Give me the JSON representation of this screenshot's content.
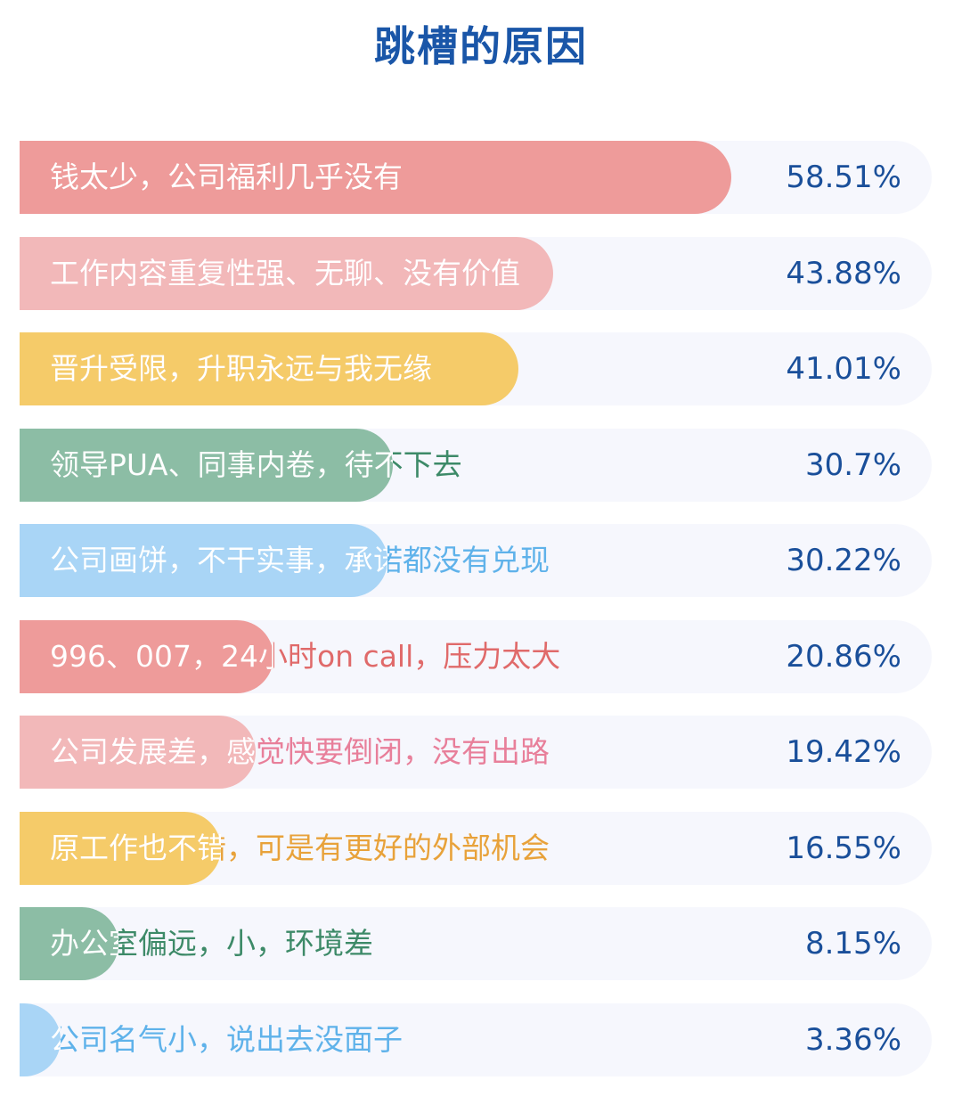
{
  "title": "跳槽的原因",
  "chart_data": {
    "type": "bar",
    "orientation": "horizontal",
    "title": "跳槽的原因",
    "unit": "%",
    "xlim": [
      0,
      75
    ],
    "categories": [
      "钱太少，公司福利几乎没有",
      "工作内容重复性强、无聊、没有价值",
      "晋升受限，升职永远与我无缘",
      "领导PUA、同事内卷，待不下去",
      "公司画饼，不干实事，承诺都没有兑现",
      "996、007，24小时on call，压力太大",
      "公司发展差，感觉快要倒闭，没有出路",
      "原工作也不错，可是有更好的外部机会",
      "办公室偏远，小，环境差",
      "公司名气小，说出去没面子"
    ],
    "values": [
      58.51,
      43.88,
      41.01,
      30.7,
      30.22,
      20.86,
      19.42,
      16.55,
      8.15,
      3.36
    ],
    "value_labels": [
      "58.51%",
      "43.88%",
      "41.01%",
      "30.7%",
      "30.22%",
      "20.86%",
      "19.42%",
      "16.55%",
      "8.15%",
      "3.36%"
    ],
    "colors": [
      "#ee9b9a",
      "#f2b8b9",
      "#f5cb69",
      "#8cbda5",
      "#a9d5f6",
      "#ee9b9a",
      "#f2b8b9",
      "#f5cb69",
      "#8cbda5",
      "#a9d5f6"
    ],
    "label_dark_colors": [
      "#e06a6a",
      "#e87f9a",
      "#e8a23a",
      "#3d8a68",
      "#5fb2ea",
      "#e06a6a",
      "#e87f9a",
      "#e8a23a",
      "#3d8a68",
      "#5fb2ea"
    ],
    "track_color": "#f6f7fd",
    "value_color": "#1a4f9a",
    "grid": false,
    "legend": "none"
  }
}
